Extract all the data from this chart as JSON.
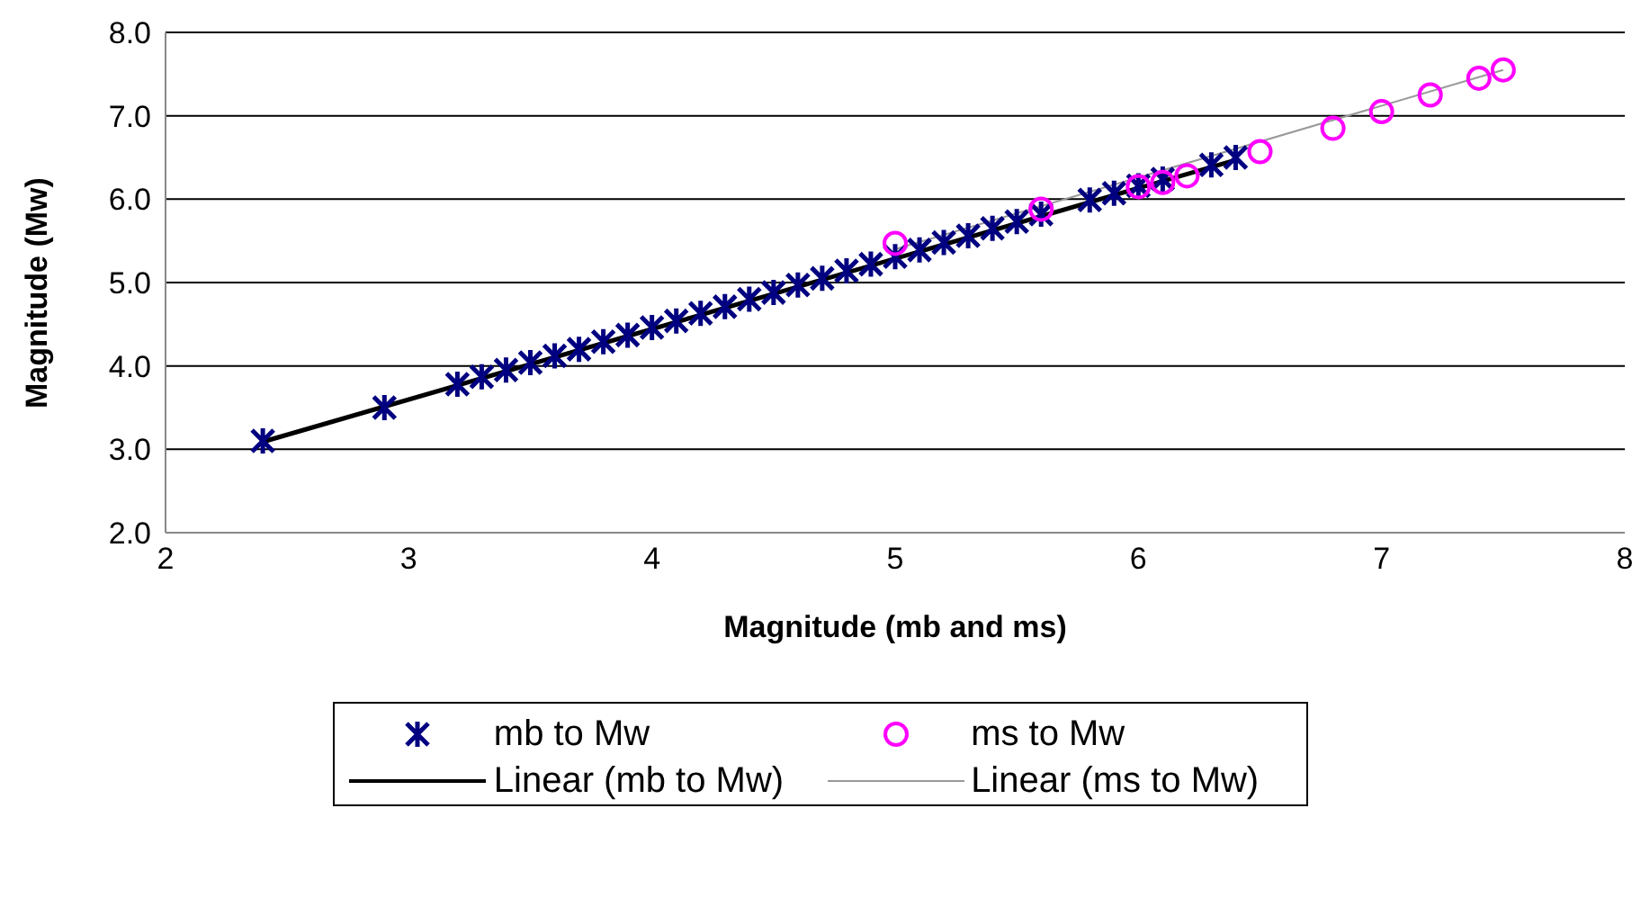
{
  "chart_data": {
    "type": "scatter",
    "xlabel": "Magnitude (mb and ms)",
    "ylabel": "Magnitude (Mw)",
    "xlim": [
      2,
      8
    ],
    "xticks": [
      2,
      3,
      4,
      5,
      6,
      7,
      8
    ],
    "ylim": [
      2,
      8
    ],
    "yticks": [
      {
        "value": 2,
        "label": "2.0"
      },
      {
        "value": 3,
        "label": "3.0"
      },
      {
        "value": 4,
        "label": "4.0"
      },
      {
        "value": 5,
        "label": "5.0"
      },
      {
        "value": 6,
        "label": "6.0"
      },
      {
        "value": 7,
        "label": "7.0"
      },
      {
        "value": 8,
        "label": "8.0"
      }
    ],
    "grid": "y",
    "legend": "bottom",
    "series": [
      {
        "name": "mb to Mw",
        "type": "scatter",
        "marker": "cross",
        "color": "#000080",
        "x": [
          2.4,
          2.9,
          3.2,
          3.3,
          3.4,
          3.5,
          3.6,
          3.7,
          3.8,
          3.9,
          4.0,
          4.1,
          4.2,
          4.3,
          4.4,
          4.5,
          4.6,
          4.7,
          4.8,
          4.9,
          5.0,
          5.1,
          5.2,
          5.3,
          5.4,
          5.5,
          5.6,
          5.8,
          5.9,
          6.0,
          6.1,
          6.3,
          6.4
        ],
        "values": [
          3.1,
          3.5,
          3.78,
          3.87,
          3.95,
          4.04,
          4.12,
          4.2,
          4.29,
          4.37,
          4.46,
          4.54,
          4.63,
          4.71,
          4.8,
          4.88,
          4.97,
          5.05,
          5.14,
          5.22,
          5.31,
          5.39,
          5.48,
          5.56,
          5.65,
          5.73,
          5.82,
          5.99,
          6.07,
          6.16,
          6.24,
          6.41,
          6.5
        ]
      },
      {
        "name": "ms to Mw",
        "type": "scatter",
        "marker": "circle",
        "color": "#ff00ff",
        "x": [
          5.0,
          5.6,
          6.0,
          6.1,
          6.2,
          6.5,
          6.8,
          7.0,
          7.2,
          7.4,
          7.5
        ],
        "values": [
          5.47,
          5.88,
          6.15,
          6.2,
          6.28,
          6.57,
          6.85,
          7.05,
          7.25,
          7.45,
          7.55
        ]
      },
      {
        "name": "Linear (mb to Mw)",
        "type": "line",
        "line_style": "solid",
        "color": "#000000",
        "x": [
          2.4,
          6.4
        ],
        "values": [
          3.09,
          6.47
        ]
      },
      {
        "name": "Linear (ms to Mw)",
        "type": "line",
        "line_style": "solid",
        "color": "#999999",
        "x": [
          5.0,
          7.5
        ],
        "values": [
          5.4,
          7.55
        ]
      }
    ]
  }
}
